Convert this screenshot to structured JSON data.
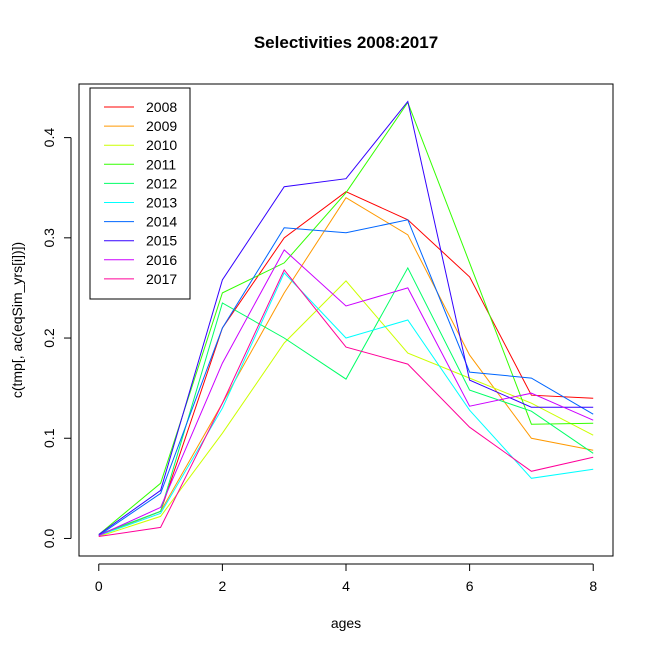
{
  "chart_data": {
    "type": "line",
    "title": "Selectivities 2008:2017",
    "xlabel": "ages",
    "ylabel": "c(tmp[, ac(eqSim_yrs[i])])",
    "xlim": [
      -0.32,
      8.32
    ],
    "ylim": [
      -0.0175,
      0.4535
    ],
    "x": [
      0,
      1,
      2,
      3,
      4,
      5,
      6,
      7,
      8
    ],
    "x_ticks": [
      0,
      2,
      4,
      6,
      8
    ],
    "x_tick_labels": [
      "0",
      "2",
      "4",
      "6",
      "8"
    ],
    "y_ticks": [
      0.0,
      0.1,
      0.2,
      0.3,
      0.4
    ],
    "y_tick_labels": [
      "0.0",
      "0.1",
      "0.2",
      "0.3",
      "0.4"
    ],
    "grid": false,
    "legend_position": "top-left",
    "series": [
      {
        "name": "2008",
        "color": "#FF0000",
        "values": [
          0.003,
          0.027,
          0.21,
          0.3,
          0.346,
          0.318,
          0.261,
          0.143,
          0.14
        ]
      },
      {
        "name": "2009",
        "color": "#FF9900",
        "values": [
          0.003,
          0.027,
          0.135,
          0.245,
          0.34,
          0.303,
          0.183,
          0.1,
          0.088
        ]
      },
      {
        "name": "2010",
        "color": "#CCFF00",
        "values": [
          0.002,
          0.022,
          0.105,
          0.195,
          0.257,
          0.185,
          0.16,
          0.135,
          0.103
        ]
      },
      {
        "name": "2011",
        "color": "#33FF00",
        "values": [
          0.004,
          0.055,
          0.245,
          0.275,
          0.345,
          0.435,
          0.275,
          0.114,
          0.115
        ]
      },
      {
        "name": "2012",
        "color": "#00FF66",
        "values": [
          0.004,
          0.027,
          0.235,
          0.2,
          0.159,
          0.27,
          0.148,
          0.127,
          0.085
        ]
      },
      {
        "name": "2013",
        "color": "#00FFFF",
        "values": [
          0.003,
          0.025,
          0.13,
          0.265,
          0.2,
          0.218,
          0.128,
          0.06,
          0.069
        ]
      },
      {
        "name": "2014",
        "color": "#0066FF",
        "values": [
          0.003,
          0.045,
          0.21,
          0.31,
          0.305,
          0.318,
          0.166,
          0.16,
          0.124
        ]
      },
      {
        "name": "2015",
        "color": "#3300FF",
        "values": [
          0.004,
          0.048,
          0.258,
          0.351,
          0.359,
          0.436,
          0.158,
          0.131,
          0.131
        ]
      },
      {
        "name": "2016",
        "color": "#CC00FF",
        "values": [
          0.003,
          0.031,
          0.175,
          0.288,
          0.232,
          0.25,
          0.132,
          0.145,
          0.118
        ]
      },
      {
        "name": "2017",
        "color": "#FF0099",
        "values": [
          0.002,
          0.011,
          0.135,
          0.268,
          0.191,
          0.174,
          0.111,
          0.067,
          0.081
        ]
      }
    ]
  }
}
